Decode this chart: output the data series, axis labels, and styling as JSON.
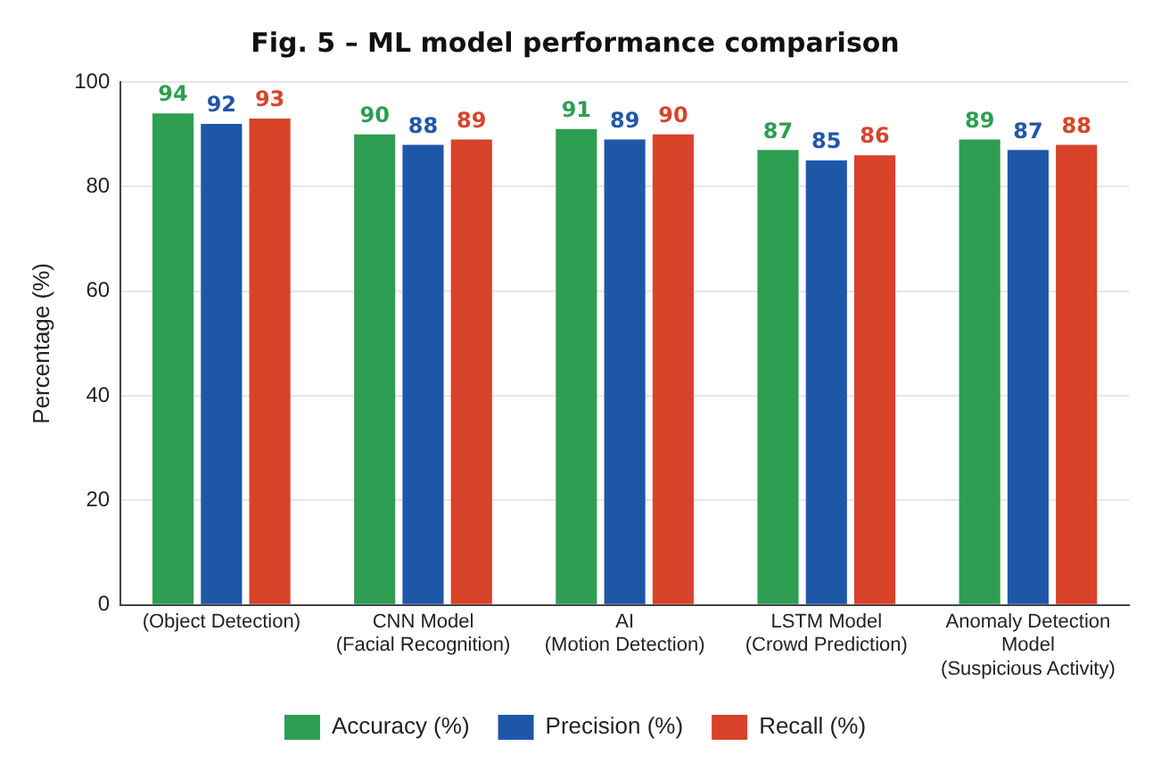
{
  "chart_data": {
    "type": "bar",
    "title": "Fig. 5 – ML model performance comparison",
    "ylabel": "Percentage (%)",
    "categories": [
      "(Object Detection)",
      "CNN Model\n(Facial Recognition)",
      "AI\n(Motion Detection)",
      "LSTM Model\n(Crowd Prediction)",
      "Anomaly Detection\nModel\n(Suspicious Activity)"
    ],
    "series": [
      {
        "name": "Accuracy (%)",
        "color": "#2e9e52",
        "values": [
          94,
          90,
          91,
          87,
          89
        ]
      },
      {
        "name": "Precision (%)",
        "color": "#1f57a8",
        "values": [
          92,
          88,
          89,
          85,
          87
        ]
      },
      {
        "name": "Recall (%)",
        "color": "#d8432a",
        "values": [
          93,
          89,
          90,
          86,
          88
        ]
      }
    ],
    "ylim": [
      0,
      100
    ],
    "yticks": [
      0,
      20,
      40,
      60,
      80,
      100
    ],
    "grid": "y",
    "legend": "bottom",
    "data_labels": true
  }
}
